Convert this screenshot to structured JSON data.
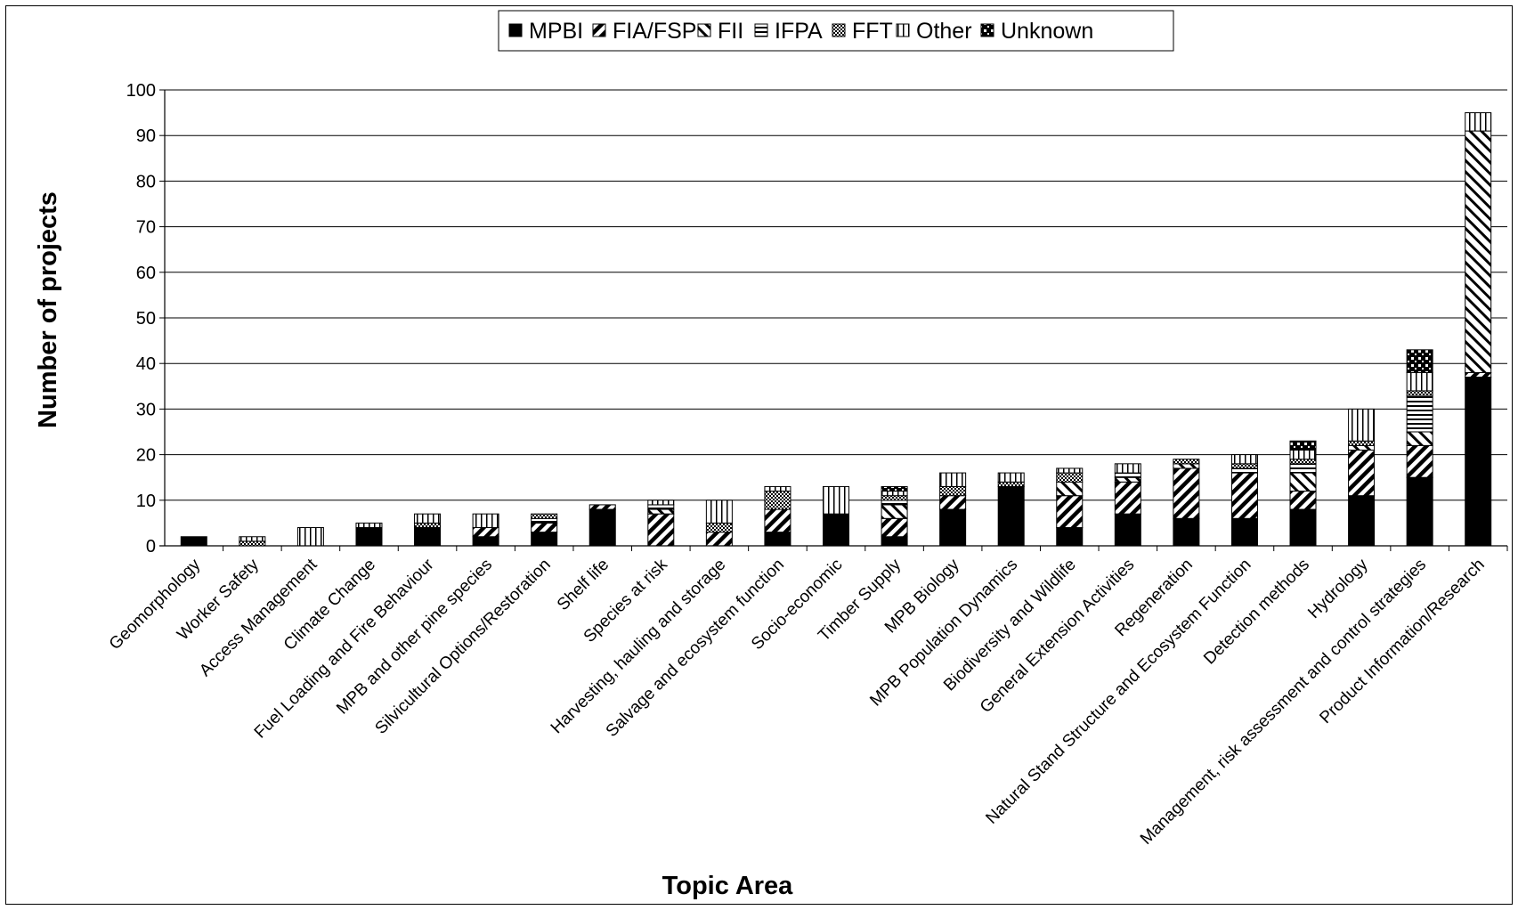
{
  "chart_data": {
    "type": "bar",
    "stacked": true,
    "title": "",
    "xlabel": "Topic Area",
    "ylabel": "Number of projects",
    "ylim": [
      0,
      100
    ],
    "yticks": [
      0,
      10,
      20,
      30,
      40,
      50,
      60,
      70,
      80,
      90,
      100
    ],
    "grid": true,
    "legend_position": "top-center",
    "categories": [
      "Geomorphology",
      "Worker Safety",
      "Access Management",
      "Climate Change",
      "Fuel Loading and Fire Behaviour",
      "MPB and other pine species",
      "Silvicultural Options/Restoration",
      "Shelf life",
      "Species at risk",
      "Harvesting, hauling and storage",
      "Salvage and ecosystem function",
      "Socio-economic",
      "Timber Supply",
      "MPB Biology",
      "MPB Population Dynamics",
      "Biodiversity and Wildlife",
      "General Extension Activities",
      "Regeneration",
      "Natural Stand Structure and Ecosystem Function",
      "Detection methods",
      "Hydrology",
      "Management, risk assessment and control strategies",
      "Product Information/Research"
    ],
    "series": [
      {
        "name": "MPBI",
        "pattern": "solid",
        "values": [
          2,
          0,
          0,
          4,
          4,
          2,
          3,
          8,
          0,
          0,
          3,
          7,
          2,
          8,
          13,
          4,
          7,
          6,
          6,
          8,
          11,
          15,
          37
        ]
      },
      {
        "name": "FIA/FSP",
        "pattern": "diag-fwd",
        "values": [
          0,
          0,
          0,
          0,
          0,
          2,
          2,
          1,
          7,
          3,
          5,
          0,
          4,
          3,
          0,
          7,
          7,
          11,
          10,
          4,
          10,
          7,
          1
        ]
      },
      {
        "name": "FII",
        "pattern": "diag-back",
        "values": [
          0,
          0,
          0,
          0,
          0,
          0,
          0,
          0,
          1,
          0,
          0,
          0,
          3,
          0,
          0,
          3,
          1,
          1,
          0,
          4,
          1,
          3,
          53
        ]
      },
      {
        "name": "IFPA",
        "pattern": "hlines",
        "values": [
          0,
          0,
          0,
          0,
          0,
          0,
          1,
          0,
          1,
          0,
          0,
          0,
          1,
          0,
          0,
          0,
          1,
          0,
          1,
          2,
          0,
          8,
          0
        ]
      },
      {
        "name": "FFT",
        "pattern": "checker",
        "values": [
          0,
          1,
          0,
          0,
          1,
          0,
          1,
          0,
          0,
          2,
          4,
          0,
          1,
          2,
          1,
          2,
          0,
          1,
          1,
          1,
          1,
          1,
          0
        ]
      },
      {
        "name": "Other",
        "pattern": "vlines",
        "values": [
          0,
          1,
          4,
          1,
          2,
          3,
          0,
          0,
          1,
          5,
          1,
          6,
          1,
          3,
          2,
          1,
          2,
          0,
          2,
          2,
          7,
          4,
          4
        ]
      },
      {
        "name": "Unknown",
        "pattern": "dots",
        "values": [
          0,
          0,
          0,
          0,
          0,
          0,
          0,
          0,
          0,
          0,
          0,
          0,
          1,
          0,
          0,
          0,
          0,
          0,
          0,
          2,
          0,
          5,
          0
        ]
      }
    ]
  }
}
